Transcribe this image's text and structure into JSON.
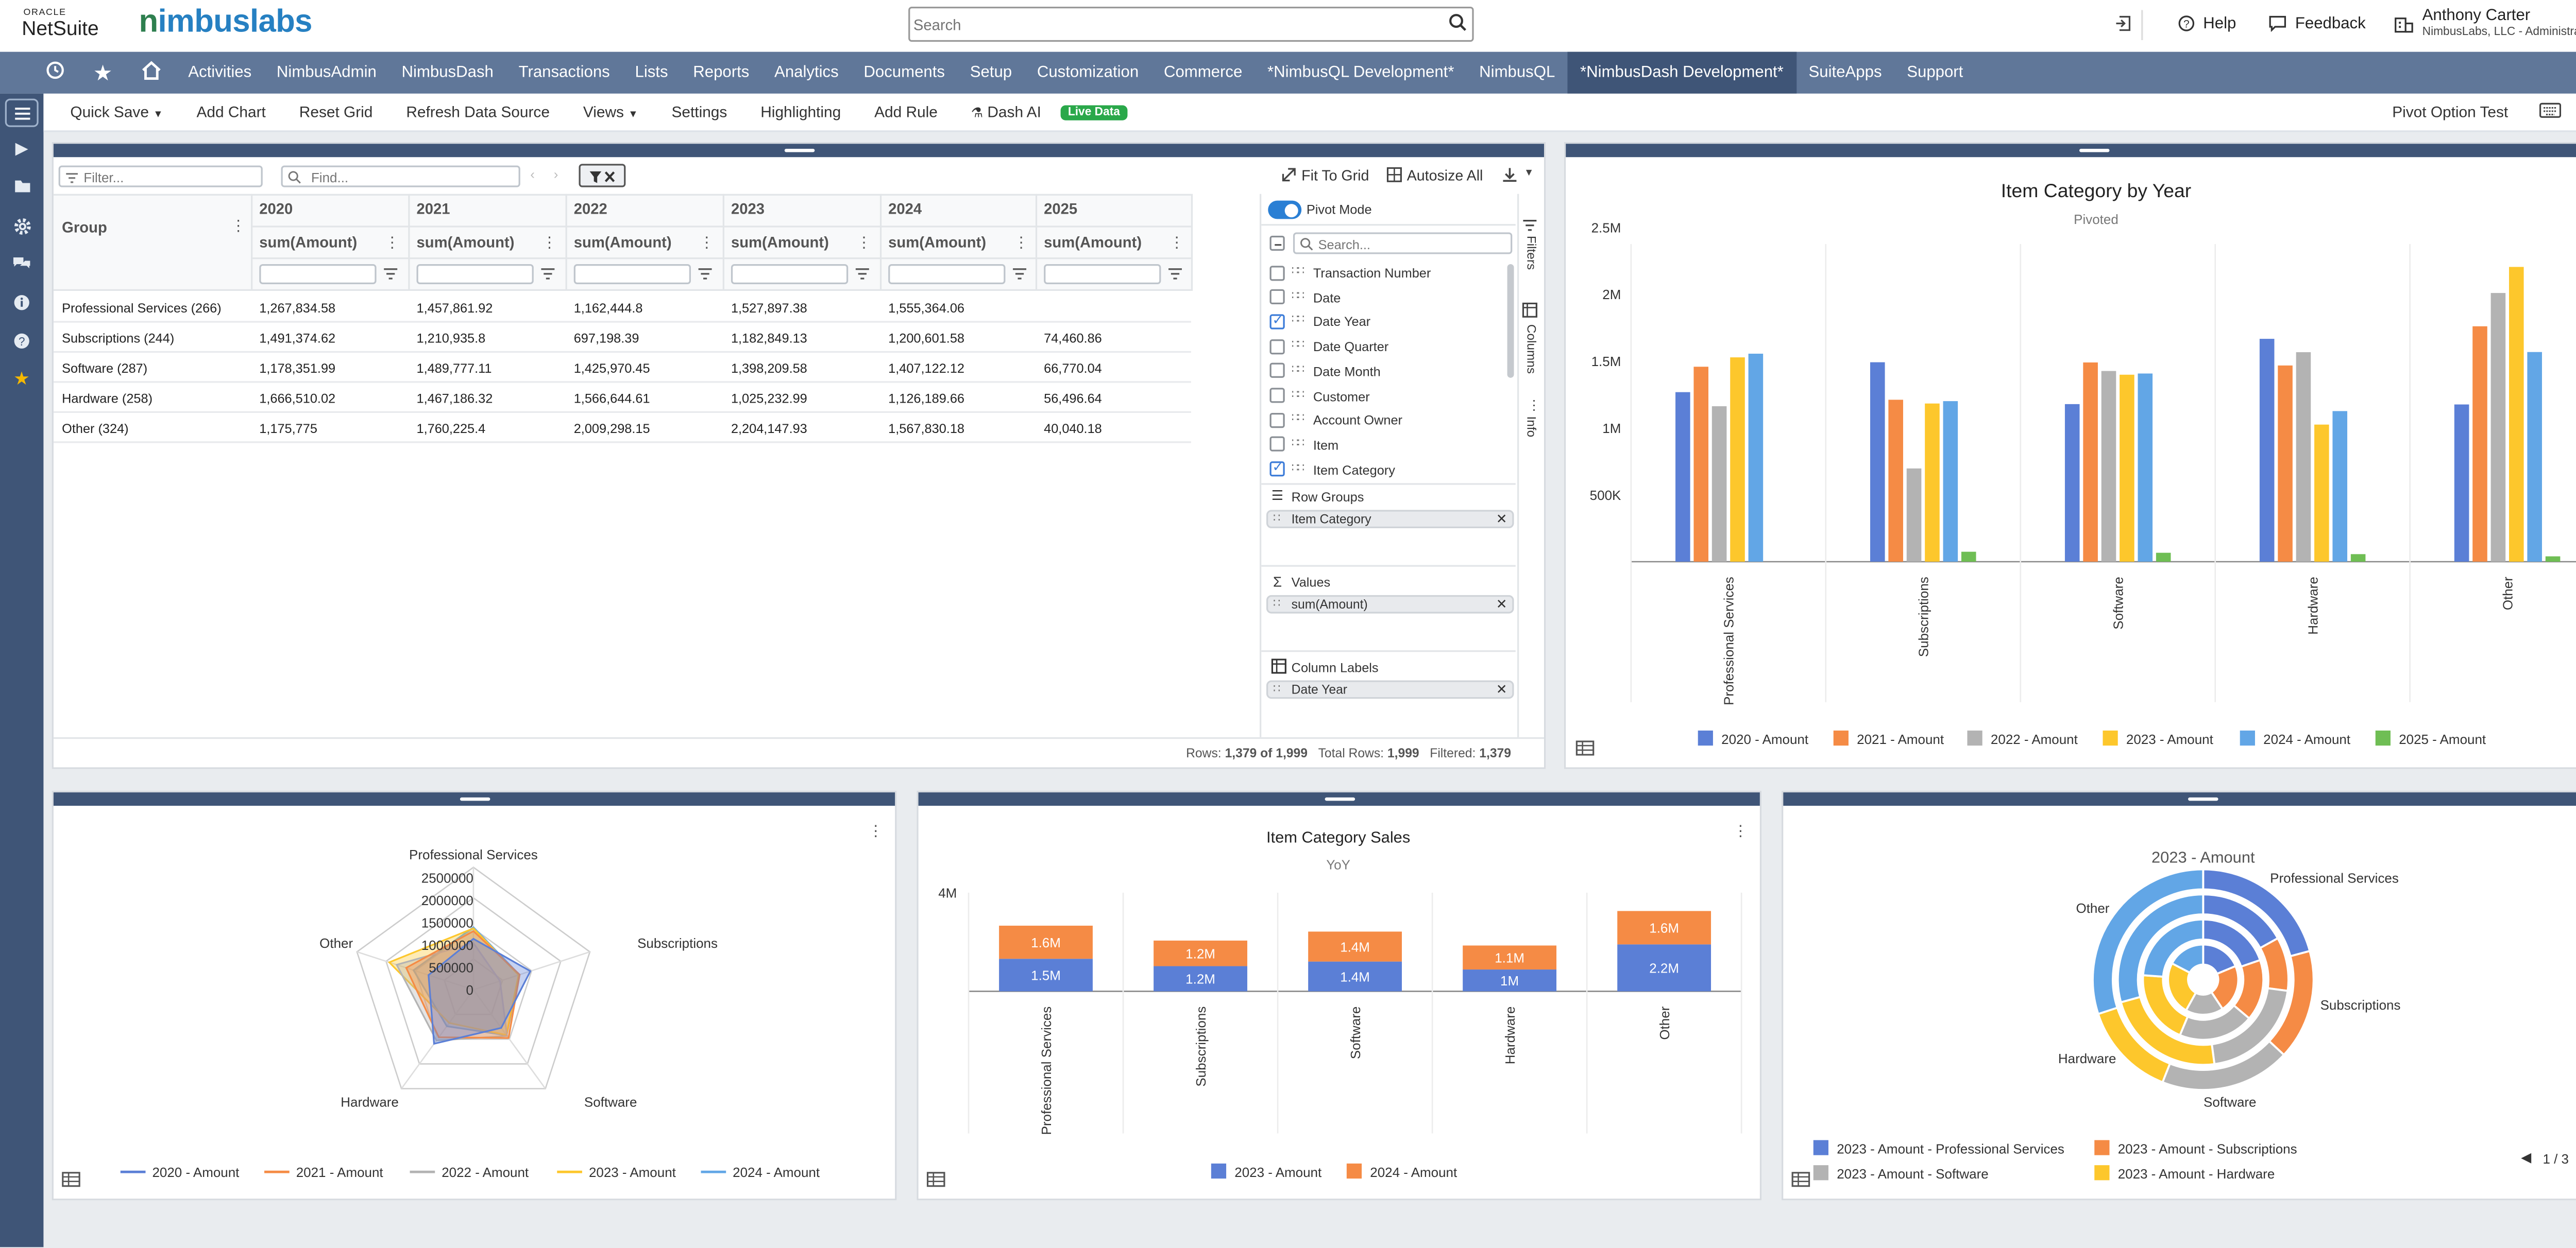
{
  "header": {
    "oracle_label": "ORACLE",
    "netsuite_label": "NetSuite",
    "brand_n": "n",
    "brand_rest": "imbuslabs",
    "search_placeholder": "Search",
    "help_label": "Help",
    "feedback_label": "Feedback",
    "user_name": "Anthony Carter",
    "user_role": "NimbusLabs, LLC - Administrator"
  },
  "nav": [
    "Activities",
    "NimbusAdmin",
    "NimbusDash",
    "Transactions",
    "Lists",
    "Reports",
    "Analytics",
    "Documents",
    "Setup",
    "Customization",
    "Commerce",
    "*NimbusQL Development*",
    "NimbusQL",
    "*NimbusDash Development*",
    "SuiteApps",
    "Support"
  ],
  "toolbar": {
    "quick_save": "Quick Save",
    "add_chart": "Add Chart",
    "reset_grid": "Reset Grid",
    "refresh": "Refresh Data Source",
    "views": "Views",
    "settings": "Settings",
    "highlighting": "Highlighting",
    "add_rule": "Add Rule",
    "dash_ai": "Dash AI",
    "live_data": "Live Data",
    "pivot_option": "Pivot Option Test"
  },
  "grid": {
    "filter_placeholder": "Filter...",
    "find_placeholder": "Find...",
    "fit_to_grid": "Fit To Grid",
    "autosize_all": "Autosize All",
    "group_header": "Group",
    "years": [
      "2020",
      "2021",
      "2022",
      "2023",
      "2024",
      "2025"
    ],
    "measure": "sum(Amount)",
    "rows": [
      {
        "group": "Professional Services (266)",
        "values": [
          "1,267,834.58",
          "1,457,861.92",
          "1,162,444.8",
          "1,527,897.38",
          "1,555,364.06",
          ""
        ]
      },
      {
        "group": "Subscriptions (244)",
        "values": [
          "1,491,374.62",
          "1,210,935.8",
          "697,198.39",
          "1,182,849.13",
          "1,200,601.58",
          "74,460.86"
        ]
      },
      {
        "group": "Software (287)",
        "values": [
          "1,178,351.99",
          "1,489,777.11",
          "1,425,970.45",
          "1,398,209.58",
          "1,407,122.12",
          "66,770.04"
        ]
      },
      {
        "group": "Hardware (258)",
        "values": [
          "1,666,510.02",
          "1,467,186.32",
          "1,566,644.61",
          "1,025,232.99",
          "1,126,189.66",
          "56,496.64"
        ]
      },
      {
        "group": "Other (324)",
        "values": [
          "1,175,775",
          "1,760,225.4",
          "2,009,298.15",
          "2,204,147.93",
          "1,567,830.18",
          "40,040.18"
        ]
      }
    ],
    "status_rows_label": "Rows:",
    "status_rows_value": "1,379 of 1,999",
    "status_total_label": "Total Rows:",
    "status_total_value": "1,999",
    "status_filtered_label": "Filtered:",
    "status_filtered_value": "1,379"
  },
  "pivot": {
    "mode_label": "Pivot Mode",
    "search_placeholder": "Search...",
    "fields": [
      {
        "label": "Transaction Number",
        "checked": false
      },
      {
        "label": "Date",
        "checked": false
      },
      {
        "label": "Date Year",
        "checked": true
      },
      {
        "label": "Date Quarter",
        "checked": false
      },
      {
        "label": "Date Month",
        "checked": false
      },
      {
        "label": "Customer",
        "checked": false
      },
      {
        "label": "Account Owner",
        "checked": false
      },
      {
        "label": "Item",
        "checked": false
      },
      {
        "label": "Item Category",
        "checked": true
      }
    ],
    "row_groups_label": "Row Groups",
    "row_group_chip": "Item Category",
    "values_label": "Values",
    "values_chip": "sum(Amount)",
    "column_labels_label": "Column Labels",
    "column_chip": "Date Year",
    "side_tabs": [
      "Filters",
      "Columns",
      "Info"
    ]
  },
  "colors": {
    "c2020": "#5b7fd6",
    "c2021": "#f58b45",
    "c2022": "#b3b3b3",
    "c2023": "#fdc72c",
    "c2024": "#62a6e6",
    "c2025": "#6fbe54",
    "nav_bg": "#607799",
    "sidebar_bg": "#3f5577",
    "live_green": "#2aa84a"
  },
  "charts": [
    {
      "chart_data": {
        "type": "bar",
        "title": "Item Category by Year",
        "subtitle": "Pivoted",
        "categories": [
          "Professional Services",
          "Subscriptions",
          "Software",
          "Hardware",
          "Other"
        ],
        "series": [
          {
            "name": "2020 - Amount",
            "values": [
              1267834.58,
              1491374.62,
              1178351.99,
              1666510.02,
              1175775
            ]
          },
          {
            "name": "2021 - Amount",
            "values": [
              1457861.92,
              1210935.8,
              1489777.11,
              1467186.32,
              1760225.4
            ]
          },
          {
            "name": "2022 - Amount",
            "values": [
              1162444.8,
              697198.39,
              1425970.45,
              1566644.61,
              2009298.15
            ]
          },
          {
            "name": "2023 - Amount",
            "values": [
              1527897.38,
              1182849.13,
              1398209.58,
              1025232.99,
              2204147.93
            ]
          },
          {
            "name": "2024 - Amount",
            "values": [
              1555364.06,
              1200601.58,
              1407122.12,
              1126189.66,
              1567830.18
            ]
          },
          {
            "name": "2025 - Amount",
            "values": [
              0,
              74460.86,
              66770.04,
              56496.64,
              40040.18
            ]
          }
        ],
        "yticks": [
          "500K",
          "1M",
          "1.5M",
          "2M",
          "2.5M"
        ],
        "ylim": [
          0,
          2500000
        ],
        "legend": "bottom"
      }
    },
    {
      "chart_data": {
        "type": "radar",
        "categories": [
          "Professional Services",
          "Subscriptions",
          "Software",
          "Hardware",
          "Other"
        ],
        "series": [
          {
            "name": "2020 - Amount",
            "values": [
              1267834.58,
              1491374.62,
              1178351.99,
              1666510.02,
              1175775
            ]
          },
          {
            "name": "2021 - Amount",
            "values": [
              1457861.92,
              1210935.8,
              1489777.11,
              1467186.32,
              1760225.4
            ]
          },
          {
            "name": "2022 - Amount",
            "values": [
              1162444.8,
              697198.39,
              1425970.45,
              1566644.61,
              2009298.15
            ]
          },
          {
            "name": "2023 - Amount",
            "values": [
              1527897.38,
              1182849.13,
              1398209.58,
              1025232.99,
              2204147.93
            ]
          },
          {
            "name": "2024 - Amount",
            "values": [
              1555364.06,
              1200601.58,
              1407122.12,
              1126189.66,
              1567830.18
            ]
          }
        ],
        "rticks": [
          "0",
          "500000",
          "1000000",
          "1500000",
          "2000000",
          "2500000"
        ],
        "rlim": [
          0,
          2500000
        ],
        "legend": "bottom"
      }
    },
    {
      "chart_data": {
        "type": "bar",
        "stacked": true,
        "title": "Item Category Sales",
        "subtitle": "YoY",
        "categories": [
          "Professional Services",
          "Subscriptions",
          "Software",
          "Hardware",
          "Other"
        ],
        "series": [
          {
            "name": "2023 - Amount",
            "values": [
              1527897.38,
              1182849.13,
              1398209.58,
              1025232.99,
              2204147.93
            ],
            "labels": [
              "1.5M",
              "1.2M",
              "1.4M",
              "1M",
              "2.2M"
            ]
          },
          {
            "name": "2024 - Amount",
            "values": [
              1555364.06,
              1200601.58,
              1407122.12,
              1126189.66,
              1567830.18
            ],
            "labels": [
              "1.6M",
              "1.2M",
              "1.4M",
              "1.1M",
              "1.6M"
            ]
          }
        ],
        "yticks": [
          "4M"
        ],
        "ylim": [
          0,
          4000000
        ],
        "legend": "bottom"
      }
    },
    {
      "chart_data": {
        "type": "pie",
        "donut": true,
        "title": "2023 - Amount",
        "categories": [
          "Professional Services",
          "Subscriptions",
          "Software",
          "Hardware",
          "Other"
        ],
        "rings": [
          {
            "name": "2023 - Amount",
            "values": [
              1527897.38,
              1182849.13,
              1398209.58,
              1025232.99,
              2204147.93
            ]
          },
          {
            "name": "2022 - Amount",
            "values": [
              1162444.8,
              697198.39,
              1425970.45,
              1566644.61,
              2009298.15
            ]
          },
          {
            "name": "2021 - Amount",
            "values": [
              1457861.92,
              1210935.8,
              1489777.11,
              1467186.32,
              1760225.4
            ]
          },
          {
            "name": "2020 - Amount",
            "values": [
              1267834.58,
              1491374.62,
              1178351.99,
              1666510.02,
              1175775
            ]
          }
        ],
        "legend_items": [
          "2023 - Amount - Professional Services",
          "2023 - Amount - Subscriptions",
          "2023 - Amount - Software",
          "2023 - Amount - Hardware"
        ],
        "pager": "1 / 3",
        "legend": "bottom"
      }
    }
  ]
}
